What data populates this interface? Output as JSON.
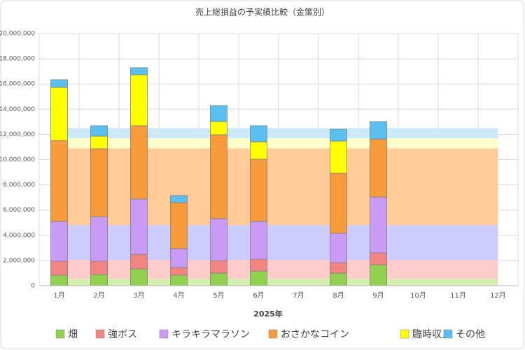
{
  "chart_data": {
    "type": "stacked-bar-over-area",
    "title": "売上総損益の予実績比較（金策別）",
    "x_label": "2025年",
    "categories": [
      "1月",
      "2月",
      "3月",
      "4月",
      "5月",
      "6月",
      "7月",
      "8月",
      "9月",
      "10月",
      "11月",
      "12月"
    ],
    "ylim": [
      0,
      20000000
    ],
    "yticks": [
      {
        "value": 0,
        "label": "0"
      },
      {
        "value": 2000000,
        "label": "2,000,000"
      },
      {
        "value": 4000000,
        "label": "4,000,000"
      },
      {
        "value": 6000000,
        "label": "6,000,000"
      },
      {
        "value": 8000000,
        "label": "8,000,000"
      },
      {
        "value": 10000000,
        "label": "10,000,000"
      },
      {
        "value": 12000000,
        "label": "12,000,000"
      },
      {
        "value": 14000000,
        "label": "14,000,000"
      },
      {
        "value": 16000000,
        "label": "16,000,000"
      },
      {
        "value": 18000000,
        "label": "18,000,000"
      },
      {
        "value": 20000000,
        "label": "20,000,000"
      }
    ],
    "grid": true,
    "series": [
      {
        "name": "畑",
        "color": "#92d050",
        "values": [
          830000,
          890000,
          1330000,
          830000,
          1000000,
          1160000,
          0,
          1000000,
          1660000,
          0,
          0,
          0
        ]
      },
      {
        "name": "強ボス",
        "color": "#f28482",
        "values": [
          1110000,
          1050000,
          1160000,
          610000,
          990000,
          940000,
          0,
          830000,
          940000,
          0,
          0,
          0
        ]
      },
      {
        "name": "キラキラマラソン",
        "color": "#c99bf5",
        "values": [
          3160000,
          3540000,
          4380000,
          1500000,
          3330000,
          3000000,
          0,
          2330000,
          4440000,
          0,
          0,
          0
        ]
      },
      {
        "name": "おさかなコイン",
        "color": "#f79a3a",
        "values": [
          6420000,
          5380000,
          5820000,
          3650000,
          6650000,
          4930000,
          0,
          4760000,
          4590000,
          0,
          0,
          0
        ]
      },
      {
        "name": "臨時収入",
        "color": "#ffff00",
        "values": [
          4210000,
          1000000,
          4040000,
          0,
          1050000,
          1380000,
          0,
          2550000,
          0,
          0,
          0,
          0
        ]
      },
      {
        "name": "その他",
        "color": "#5bc0f0",
        "values": [
          610000,
          830000,
          560000,
          560000,
          1270000,
          1280000,
          0,
          940000,
          1390000,
          0,
          0,
          0
        ]
      }
    ],
    "area_series": [
      {
        "color": "#d4f0b0",
        "values": [
          550000,
          550000,
          550000,
          550000,
          550000,
          550000,
          550000,
          550000,
          550000,
          550000,
          550000,
          550000
        ]
      },
      {
        "color": "#ffcccc",
        "values": [
          1500000,
          1500000,
          1500000,
          1500000,
          1500000,
          1500000,
          1500000,
          1500000,
          1500000,
          1500000,
          1500000,
          1500000
        ]
      },
      {
        "color": "#ccccff",
        "values": [
          2750000,
          2750000,
          2750000,
          2750000,
          2750000,
          2750000,
          2750000,
          2750000,
          2750000,
          2750000,
          2750000,
          2750000
        ]
      },
      {
        "color": "#ffcc99",
        "values": [
          6100000,
          6100000,
          6100000,
          6100000,
          6100000,
          6100000,
          6100000,
          6100000,
          6100000,
          6100000,
          6100000,
          6100000
        ]
      },
      {
        "color": "#ffffcc",
        "values": [
          800000,
          800000,
          800000,
          800000,
          800000,
          800000,
          800000,
          800000,
          800000,
          800000,
          800000,
          800000
        ]
      },
      {
        "color": "#cce9fa",
        "values": [
          800000,
          800000,
          800000,
          800000,
          800000,
          800000,
          800000,
          800000,
          800000,
          800000,
          800000,
          800000
        ]
      }
    ]
  }
}
